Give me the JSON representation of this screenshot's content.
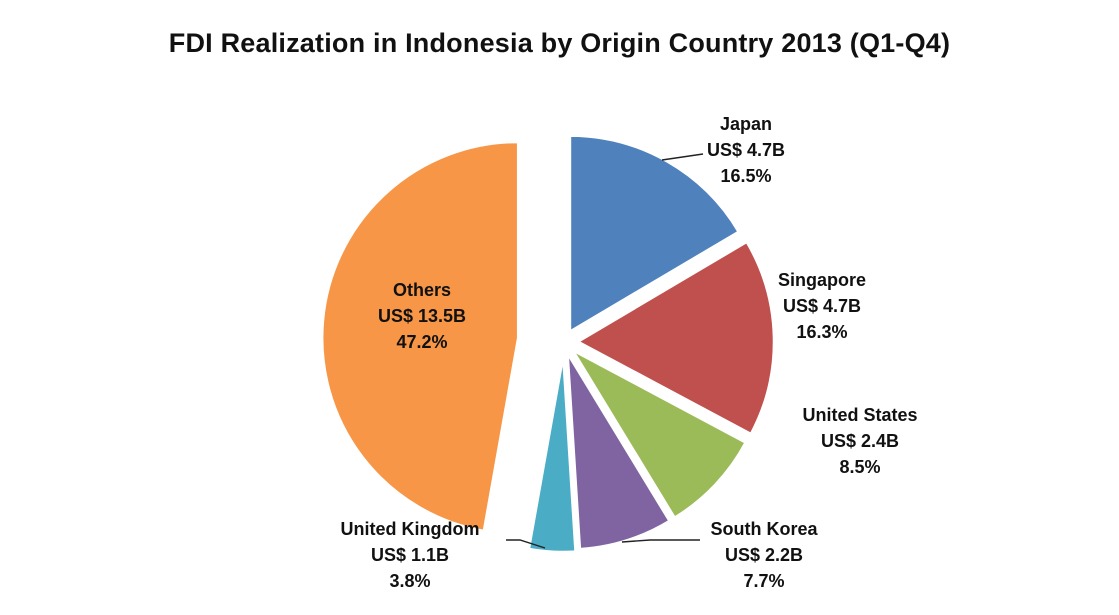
{
  "chart_data": {
    "type": "pie",
    "title": "FDI Realization in Indonesia by Origin Country 2013 (Q1-Q4)",
    "slices": [
      {
        "name": "Japan",
        "amount": "US$ 4.7B",
        "percent_label": "16.5%",
        "value": 16.5,
        "color": "#4F81BD"
      },
      {
        "name": "Singapore",
        "amount": "US$ 4.7B",
        "percent_label": "16.3%",
        "value": 16.3,
        "color": "#C0504D"
      },
      {
        "name": "United States",
        "amount": "US$ 2.4B",
        "percent_label": "8.5%",
        "value": 8.5,
        "color": "#9BBB59"
      },
      {
        "name": "South Korea",
        "amount": "US$ 2.2B",
        "percent_label": "7.7%",
        "value": 7.7,
        "color": "#8064A2"
      },
      {
        "name": "United Kingdom",
        "amount": "US$ 1.1B",
        "percent_label": "3.8%",
        "value": 3.8,
        "color": "#4BACC6"
      },
      {
        "name": "Others",
        "amount": "US$ 13.5B",
        "percent_label": "47.2%",
        "value": 47.2,
        "color": "#F79646"
      }
    ]
  }
}
